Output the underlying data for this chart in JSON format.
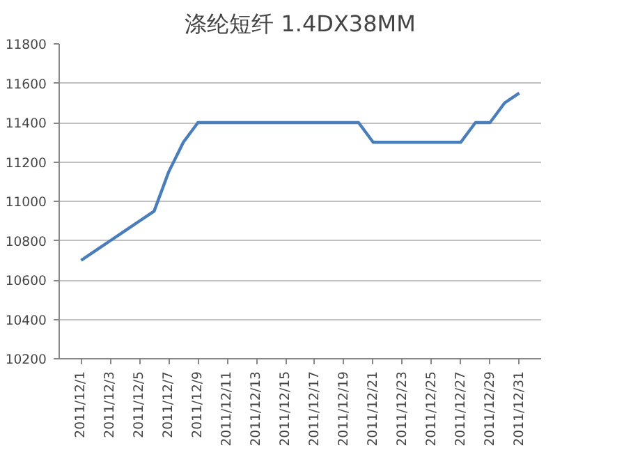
{
  "chart_data": {
    "type": "line",
    "title": "涤纶短纤 1.4DX38MM",
    "x": [
      "2011-12-01",
      "2011-12-02",
      "2011-12-03",
      "2011-12-04",
      "2011-12-05",
      "2011-12-06",
      "2011-12-07",
      "2011-12-08",
      "2011-12-09",
      "2011-12-10",
      "2011-12-11",
      "2011-12-12",
      "2011-12-13",
      "2011-12-14",
      "2011-12-15",
      "2011-12-16",
      "2011-12-17",
      "2011-12-18",
      "2011-12-19",
      "2011-12-20",
      "2011-12-21",
      "2011-12-22",
      "2011-12-23",
      "2011-12-24",
      "2011-12-25",
      "2011-12-26",
      "2011-12-27",
      "2011-12-28",
      "2011-12-29",
      "2011-12-30",
      "2011-12-31"
    ],
    "series": [
      {
        "color": "#4a7ebb",
        "values": [
          10700,
          10750,
          10800,
          10850,
          10900,
          10950,
          11150,
          11300,
          11400,
          11400,
          11400,
          11400,
          11400,
          11400,
          11400,
          11400,
          11400,
          11400,
          11400,
          11400,
          11300,
          11300,
          11300,
          11300,
          11300,
          11300,
          11300,
          11400,
          11400,
          11500,
          11550
        ]
      }
    ],
    "xlim": [
      "2011-11-29T12:00",
      "2012-01-01T12:00"
    ],
    "xticks": [
      {
        "value": "2011-12-01",
        "label": "2011/12/1"
      },
      {
        "value": "2011-12-03",
        "label": "2011/12/3"
      },
      {
        "value": "2011-12-05",
        "label": "2011/12/5"
      },
      {
        "value": "2011-12-07",
        "label": "2011/12/7"
      },
      {
        "value": "2011-12-09",
        "label": "2011/12/9"
      },
      {
        "value": "2011-12-11",
        "label": "2011/12/11"
      },
      {
        "value": "2011-12-13",
        "label": "2011/12/13"
      },
      {
        "value": "2011-12-15",
        "label": "2011/12/15"
      },
      {
        "value": "2011-12-17",
        "label": "2011/12/17"
      },
      {
        "value": "2011-12-19",
        "label": "2011/12/19"
      },
      {
        "value": "2011-12-21",
        "label": "2011/12/21"
      },
      {
        "value": "2011-12-23",
        "label": "2011/12/23"
      },
      {
        "value": "2011-12-25",
        "label": "2011/12/25"
      },
      {
        "value": "2011-12-27",
        "label": "2011/12/27"
      },
      {
        "value": "2011-12-29",
        "label": "2011/12/29"
      },
      {
        "value": "2011-12-31",
        "label": "2011/12/31"
      }
    ],
    "ylim": [
      10200,
      11800
    ],
    "yticks": [
      10200,
      10400,
      10600,
      10800,
      11000,
      11200,
      11400,
      11600,
      11800
    ],
    "grid": "y",
    "line_style": "solid"
  }
}
